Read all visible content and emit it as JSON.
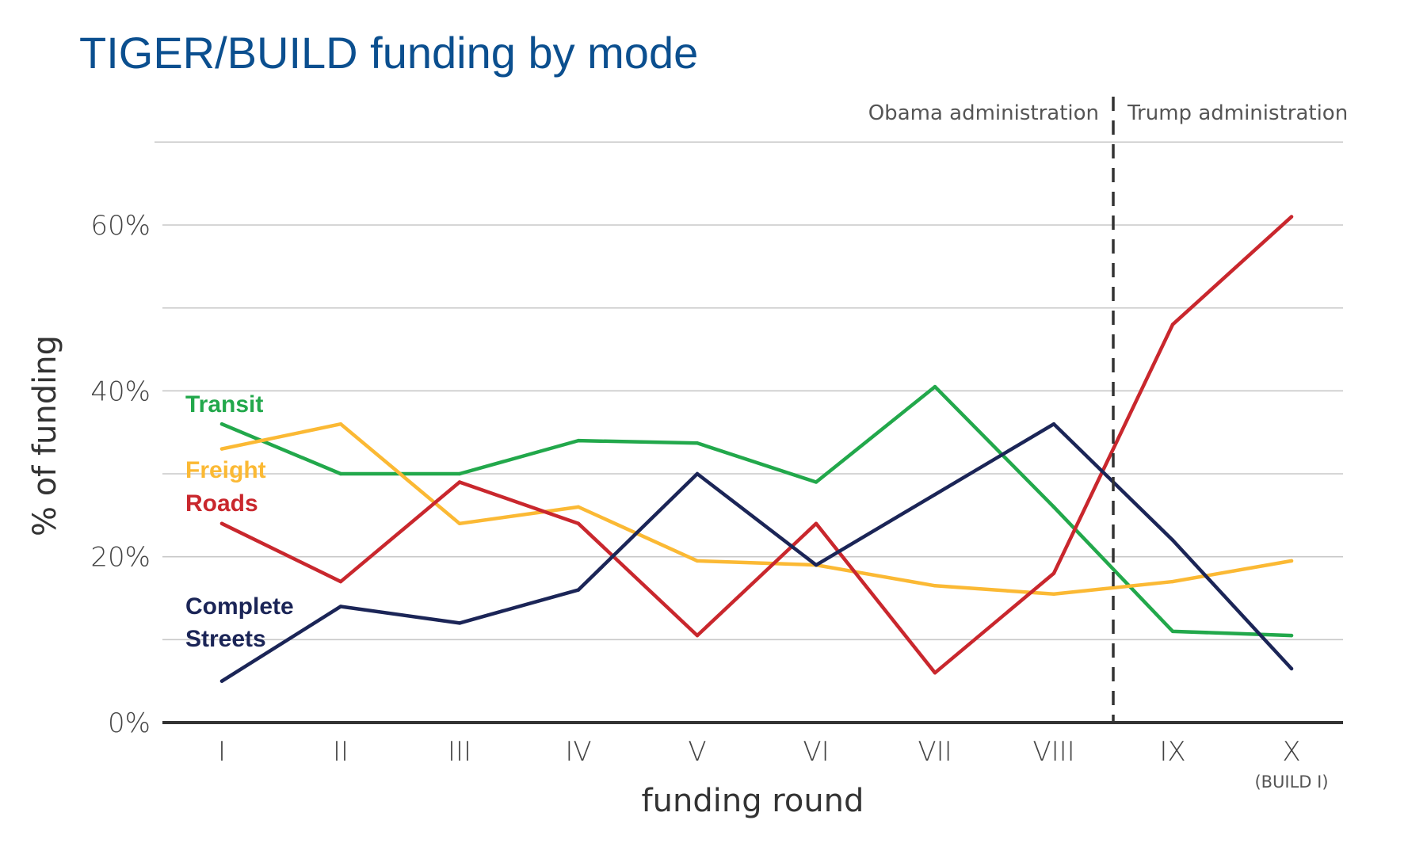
{
  "chart_data": {
    "type": "line",
    "title": "TIGER/BUILD funding by mode",
    "xlabel": "funding round",
    "ylabel": "% of funding",
    "categories": [
      "I",
      "II",
      "III",
      "IV",
      "V",
      "VI",
      "VII",
      "VIII",
      "IX",
      "X"
    ],
    "category_note": {
      "category": "X",
      "text": "(BUILD I)"
    },
    "y_ticks": [
      {
        "value": 0,
        "label": "0%"
      },
      {
        "value": 20,
        "label": "20%"
      },
      {
        "value": 40,
        "label": "40%"
      },
      {
        "value": 60,
        "label": "60%"
      }
    ],
    "ylim": [
      0,
      70
    ],
    "grid": true,
    "series": [
      {
        "name": "Transit",
        "color": "#22a84b",
        "values": [
          36,
          30,
          30,
          34,
          33.7,
          29,
          40.5,
          26,
          11,
          10.5
        ]
      },
      {
        "name": "Freight",
        "color": "#fbb934",
        "values": [
          33,
          36,
          24,
          26,
          19.5,
          19,
          16.5,
          15.5,
          17,
          19.5
        ]
      },
      {
        "name": "Roads",
        "color": "#c9272d",
        "values": [
          24,
          17,
          29,
          24,
          10.5,
          24,
          6,
          18,
          48,
          61
        ]
      },
      {
        "name": "Complete Streets",
        "color": "#1b2557",
        "values": [
          5,
          14,
          12,
          16,
          30,
          19,
          27.5,
          36,
          22,
          6.5
        ]
      }
    ],
    "series_labels": [
      {
        "lines": [
          "Transit"
        ],
        "color": "#22a84b"
      },
      {
        "lines": [
          "Freight"
        ],
        "color": "#fbb934"
      },
      {
        "lines": [
          "Roads"
        ],
        "color": "#c9272d"
      },
      {
        "lines": [
          "Complete",
          "Streets"
        ],
        "color": "#1b2557"
      }
    ],
    "eras": [
      {
        "label": "Obama administration"
      },
      {
        "label": "Trump administration"
      }
    ],
    "era_divider_between": [
      "VIII",
      "IX"
    ]
  }
}
